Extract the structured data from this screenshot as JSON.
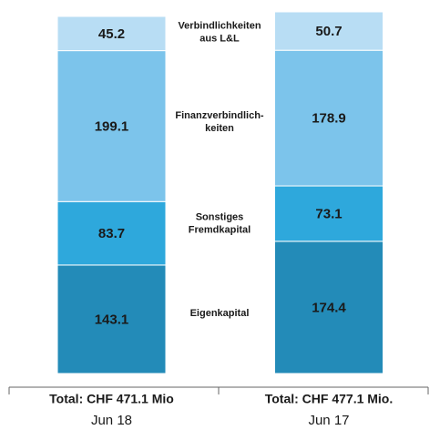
{
  "chart_data": {
    "type": "stacked_bar",
    "categories": [
      "Jun 18",
      "Jun 17"
    ],
    "totals": [
      "Total: CHF 471.1 Mio",
      "Total: CHF 477.1 Mio."
    ],
    "series": [
      {
        "name": "Eigenkapital",
        "color": "#238bb8",
        "values": [
          143.1,
          174.4
        ]
      },
      {
        "name": "Sonstiges\nFremdkapital",
        "color": "#2ea8dc",
        "values": [
          83.7,
          73.1
        ]
      },
      {
        "name": "Finanzverbindlich-\nkeiten",
        "color": "#7cc4eb",
        "values": [
          199.1,
          178.9
        ]
      },
      {
        "name": "Verbindlichkeiten\naus L&L",
        "color": "#b8ddf4",
        "values": [
          45.2,
          50.7
        ]
      }
    ]
  }
}
